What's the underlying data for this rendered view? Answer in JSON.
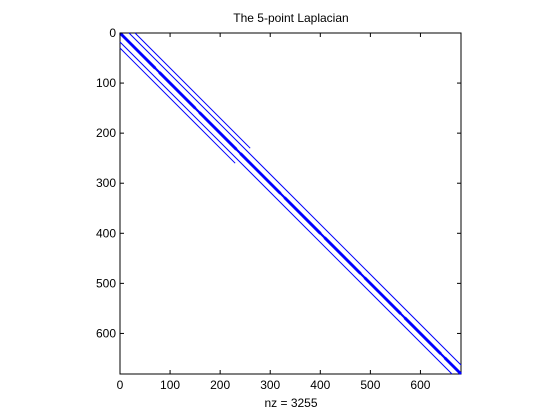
{
  "chart_data": {
    "type": "scatter",
    "title": "The 5-point Laplacian",
    "xlabel": "nz = 3255",
    "ylabel": "",
    "xlim": [
      0,
      681
    ],
    "ylim": [
      681,
      0
    ],
    "y_axis_reversed": true,
    "xticks": [
      0,
      100,
      200,
      300,
      400,
      500,
      600
    ],
    "yticks": [
      0,
      100,
      200,
      300,
      400,
      500,
      600
    ],
    "grid": false,
    "marker_color": "#0000ff",
    "matrix_size": 681,
    "nz": 3255,
    "diagonals": [
      {
        "offset": 0,
        "thick": true,
        "segments": [
          [
            0,
            681
          ]
        ]
      },
      {
        "offset": 1,
        "thick": true,
        "segments": [
          [
            0,
            70
          ],
          [
            78,
            150
          ],
          [
            158,
            232
          ],
          [
            240,
            320
          ],
          [
            328,
            400
          ],
          [
            408,
            480
          ],
          [
            488,
            560
          ],
          [
            568,
            640
          ],
          [
            648,
            680
          ]
        ]
      },
      {
        "offset": -1,
        "thick": true,
        "segments": [
          [
            1,
            71
          ],
          [
            79,
            151
          ],
          [
            159,
            233
          ],
          [
            241,
            321
          ],
          [
            329,
            401
          ],
          [
            409,
            481
          ],
          [
            489,
            561
          ],
          [
            569,
            641
          ],
          [
            649,
            681
          ]
        ]
      },
      {
        "offset": 18,
        "thick": false,
        "segments": [
          [
            0,
            663
          ]
        ]
      },
      {
        "offset": -18,
        "thick": false,
        "segments": [
          [
            18,
            681
          ]
        ]
      },
      {
        "offset": 30,
        "thick": false,
        "segments": [
          [
            0,
            230
          ]
        ]
      },
      {
        "offset": -30,
        "thick": false,
        "segments": [
          [
            30,
            260
          ]
        ]
      }
    ]
  }
}
